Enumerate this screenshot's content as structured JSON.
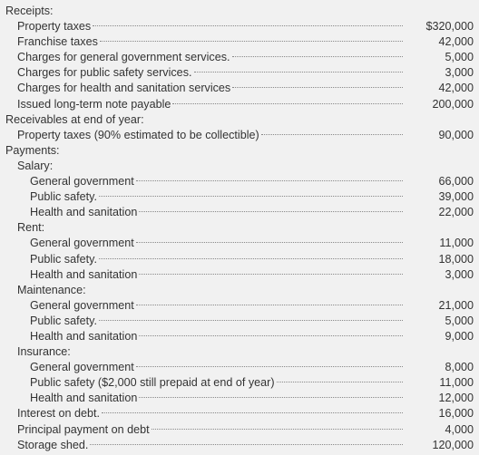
{
  "sections": [
    {
      "heading": "Receipts:",
      "items": [
        {
          "label": "Property taxes",
          "amount": "$320,000"
        },
        {
          "label": "Franchise taxes",
          "amount": "42,000"
        },
        {
          "label": "Charges for general government services.",
          "amount": "5,000"
        },
        {
          "label": "Charges for public safety services.",
          "amount": "3,000"
        },
        {
          "label": "Charges for health and sanitation services",
          "amount": "42,000"
        },
        {
          "label": "Issued long-term note payable",
          "amount": "200,000"
        }
      ]
    },
    {
      "heading": "Receivables at end of year:",
      "items": [
        {
          "label": "Property taxes (90% estimated to be collectible)",
          "amount": "90,000"
        }
      ]
    },
    {
      "heading": "Payments:",
      "items": [
        {
          "label": "Salary:",
          "items": [
            {
              "label": "General government",
              "amount": "66,000"
            },
            {
              "label": "Public safety.",
              "amount": "39,000"
            },
            {
              "label": "Health and sanitation",
              "amount": "22,000"
            }
          ]
        },
        {
          "label": "Rent:",
          "items": [
            {
              "label": "General government",
              "amount": "11,000"
            },
            {
              "label": "Public safety.",
              "amount": "18,000"
            },
            {
              "label": "Health and sanitation",
              "amount": "3,000"
            }
          ]
        },
        {
          "label": "Maintenance:",
          "items": [
            {
              "label": "General government",
              "amount": "21,000"
            },
            {
              "label": "Public safety.",
              "amount": "5,000"
            },
            {
              "label": "Health and sanitation",
              "amount": "9,000"
            }
          ]
        },
        {
          "label": "Insurance:",
          "items": [
            {
              "label": "General government",
              "amount": "8,000"
            },
            {
              "label": "Public safety ($2,000 still prepaid at end of year)",
              "amount": "11,000"
            },
            {
              "label": "Health and sanitation",
              "amount": "12,000"
            }
          ]
        },
        {
          "label": "Interest on debt.",
          "amount": "16,000"
        },
        {
          "label": "Principal payment on debt",
          "amount": "4,000"
        },
        {
          "label": "Storage shed.",
          "amount": "120,000"
        }
      ]
    }
  ]
}
